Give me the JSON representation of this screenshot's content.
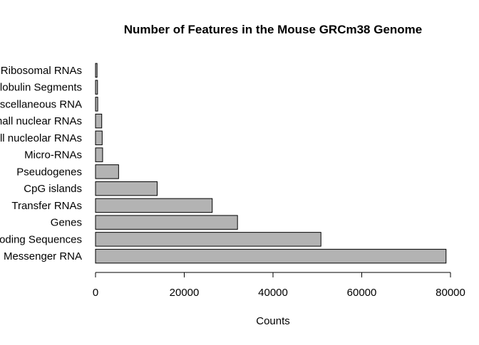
{
  "chart_data": {
    "type": "bar",
    "orientation": "horizontal",
    "title": "Number of Features in the Mouse GRCm38 Genome",
    "xlabel": "Counts",
    "ylabel": "",
    "categories": [
      "Messenger RNA",
      "Coding Sequences",
      "Genes",
      "Transfer RNAs",
      "CpG islands",
      "Pseudogenes",
      "Micro-RNAs",
      "Small nucleolar RNAs",
      "Small nuclear RNAs",
      "Miscellaneous RNA",
      "Immunoglobulin Segments",
      "Ribosomal RNAs"
    ],
    "values": [
      79000,
      50800,
      32000,
      26300,
      13900,
      5200,
      1600,
      1500,
      1400,
      500,
      450,
      350
    ],
    "xlim": [
      0,
      80000
    ],
    "xticks": [
      0,
      20000,
      40000,
      60000,
      80000
    ],
    "xtick_labels": [
      "0",
      "20000",
      "40000",
      "60000",
      "80000"
    ],
    "grid": false,
    "legend": "none",
    "colors": {
      "bar_fill": "#b3b3b3",
      "bar_stroke": "#000000",
      "axis": "#000000",
      "background": "#ffffff"
    }
  }
}
